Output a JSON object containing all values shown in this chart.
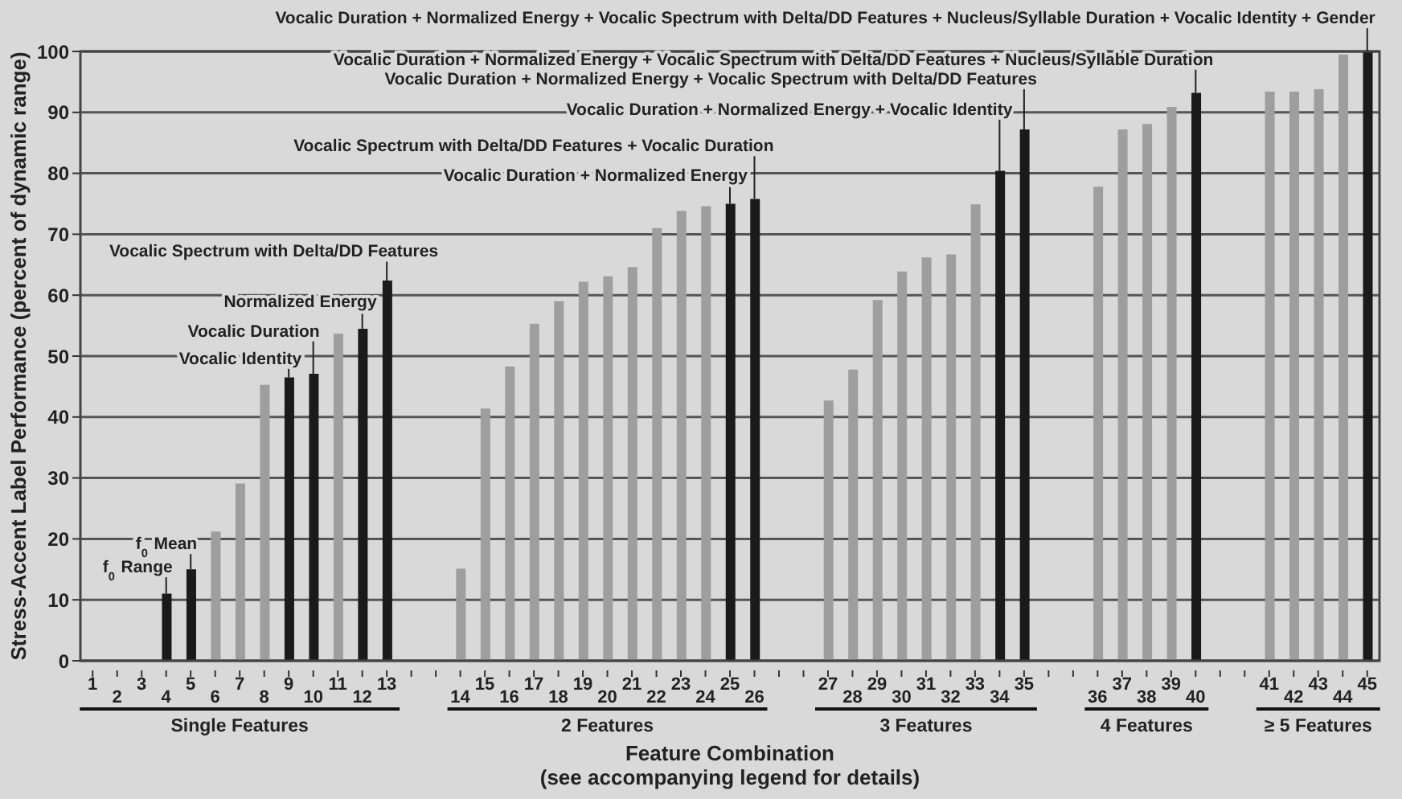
{
  "chart_data": {
    "type": "bar",
    "ylabel": "Stress-Accent Label Performance (percent of dynamic range)",
    "xlabel": "Feature Combination\n(see accompanying legend for details)",
    "categories": [
      "1",
      "2",
      "3",
      "4",
      "5",
      "6",
      "7",
      "8",
      "9",
      "10",
      "11",
      "12",
      "13",
      null,
      null,
      "14",
      "15",
      "16",
      "17",
      "18",
      "19",
      "20",
      "21",
      "22",
      "23",
      "24",
      "25",
      "26",
      null,
      null,
      "27",
      "28",
      "29",
      "30",
      "31",
      "32",
      "33",
      "34",
      "35",
      null,
      null,
      "36",
      "37",
      "38",
      "39",
      "40",
      null,
      null,
      "41",
      "42",
      "43",
      "44",
      "45"
    ],
    "values": [
      0,
      0,
      0,
      11,
      15,
      21.2,
      29.1,
      45.3,
      46.5,
      47.1,
      53.7,
      54.5,
      62.4,
      null,
      null,
      15.1,
      41.4,
      48.3,
      55.3,
      59,
      62.2,
      63.1,
      64.6,
      71,
      73.8,
      74.6,
      75,
      75.8,
      null,
      null,
      42.7,
      47.8,
      59.2,
      63.9,
      66.2,
      66.7,
      74.9,
      80.4,
      87.2,
      null,
      null,
      77.8,
      87.2,
      88.1,
      90.9,
      93.2,
      null,
      null,
      93.4,
      93.4,
      93.8,
      99.5,
      100
    ],
    "colors": [
      "#9e9e9e",
      "#9e9e9e",
      "#9e9e9e",
      "#1a1a1a",
      "#1a1a1a",
      "#9e9e9e",
      "#9e9e9e",
      "#9e9e9e",
      "#1a1a1a",
      "#1a1a1a",
      "#9e9e9e",
      "#1a1a1a",
      "#1a1a1a",
      null,
      null,
      "#9e9e9e",
      "#9e9e9e",
      "#9e9e9e",
      "#9e9e9e",
      "#9e9e9e",
      "#9e9e9e",
      "#9e9e9e",
      "#9e9e9e",
      "#9e9e9e",
      "#9e9e9e",
      "#9e9e9e",
      "#1a1a1a",
      "#1a1a1a",
      null,
      null,
      "#9e9e9e",
      "#9e9e9e",
      "#9e9e9e",
      "#9e9e9e",
      "#9e9e9e",
      "#9e9e9e",
      "#9e9e9e",
      "#1a1a1a",
      "#1a1a1a",
      null,
      null,
      "#9e9e9e",
      "#9e9e9e",
      "#9e9e9e",
      "#9e9e9e",
      "#1a1a1a",
      null,
      null,
      "#9e9e9e",
      "#9e9e9e",
      "#9e9e9e",
      "#9e9e9e",
      "#1a1a1a"
    ],
    "ylim": [
      0,
      100
    ],
    "yticks": [
      0,
      10,
      20,
      30,
      40,
      50,
      60,
      70,
      80,
      90,
      100
    ],
    "grid": "y",
    "annotations": [
      {
        "text": "f$_{0}$ Range",
        "x": "4",
        "y": 11
      },
      {
        "text": "f$_{0}$ Mean",
        "x": "5",
        "y": 15
      },
      {
        "text": "Vocalic Identity",
        "x": "9",
        "y": 46.5
      },
      {
        "text": "Vocalic Duration",
        "x": "10",
        "y": 47.1
      },
      {
        "text": "Normalized Energy",
        "x": "12",
        "y": 54.5
      },
      {
        "text": "Vocalic Spectrum with Delta/DD Features",
        "x": "13",
        "y": 62.4
      },
      {
        "text": "Vocalic Duration + Normalized Energy",
        "x": "25",
        "y": 75
      },
      {
        "text": "Vocalic Spectrum with Delta/DD Features + Vocalic Duration",
        "x": "26",
        "y": 75.8
      },
      {
        "text": "Vocalic Duration + Normalized Energy + Vocalic Identity",
        "x": "34",
        "y": 80.4
      },
      {
        "text": "Vocalic Duration + Normalized Energy + Vocalic Spectrum with Delta/DD Features",
        "x": "35",
        "y": 87.2
      },
      {
        "text": "Vocalic Duration + Normalized Energy + Vocalic Spectrum with Delta/DD Features + Nucleus/Syllable Duration",
        "x": "40",
        "y": 93.2
      },
      {
        "text": "Vocalic Duration + Normalized Energy + Vocalic Spectrum with Delta/DD Features + Nucleus/Syllable Duration + Vocalic Identity + Gender",
        "x": "45",
        "y": 100
      },
      "Single Features",
      "2 Features",
      "3 Features",
      "4 Features",
      "≥ 5 Features"
    ]
  }
}
